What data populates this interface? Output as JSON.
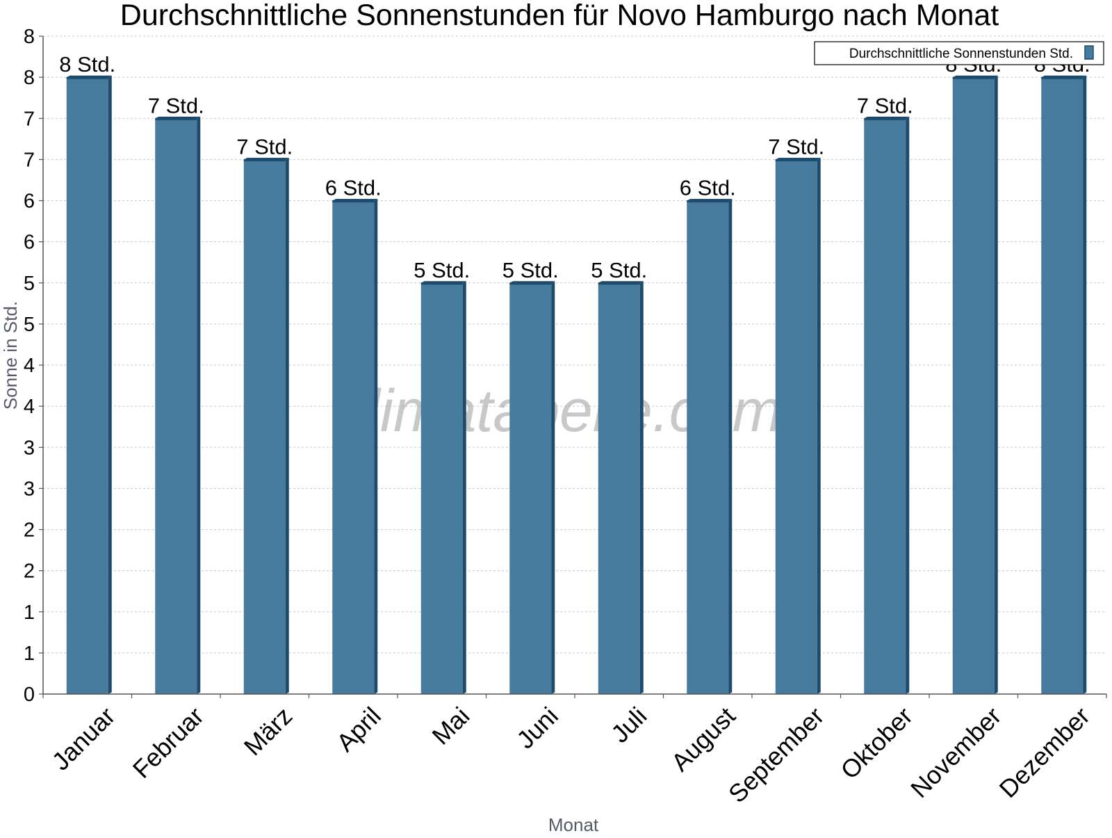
{
  "chart_data": {
    "type": "bar",
    "title": "Durchschnittliche Sonnenstunden für Novo Hamburgo nach Monat",
    "xlabel": "Monat",
    "ylabel": "Sonne in Std.",
    "categories": [
      "Januar",
      "Februar",
      "März",
      "April",
      "Mai",
      "Juni",
      "Juli",
      "August",
      "September",
      "Oktober",
      "November",
      "Dezember"
    ],
    "series": [
      {
        "name": "Durchschnittliche Sonnenstunden Std.",
        "values": [
          7.5,
          7.0,
          6.5,
          6.0,
          5.0,
          5.0,
          5.0,
          6.0,
          6.5,
          7.0,
          7.5,
          7.5
        ],
        "labels": [
          "8 Std.",
          "7 Std.",
          "7 Std.",
          "6 Std.",
          "5 Std.",
          "5 Std.",
          "5 Std.",
          "6 Std.",
          "7 Std.",
          "7 Std.",
          "8 Std.",
          "8 Std."
        ]
      }
    ],
    "y_tick_labels": [
      "0",
      "1",
      "1",
      "2",
      "2",
      "3",
      "3",
      "4",
      "4",
      "5",
      "5",
      "6",
      "6",
      "7",
      "7",
      "8",
      "8"
    ],
    "ylim": [
      0,
      8
    ],
    "grid": true,
    "legend": "top-right",
    "watermark": "klimatabelle.com",
    "colors": {
      "bar_face": "#467b9d",
      "bar_side": "#1e4b6b",
      "bar_top": "#1e4b6b",
      "grid": "#c8c8c8",
      "axis": "#555555"
    }
  }
}
